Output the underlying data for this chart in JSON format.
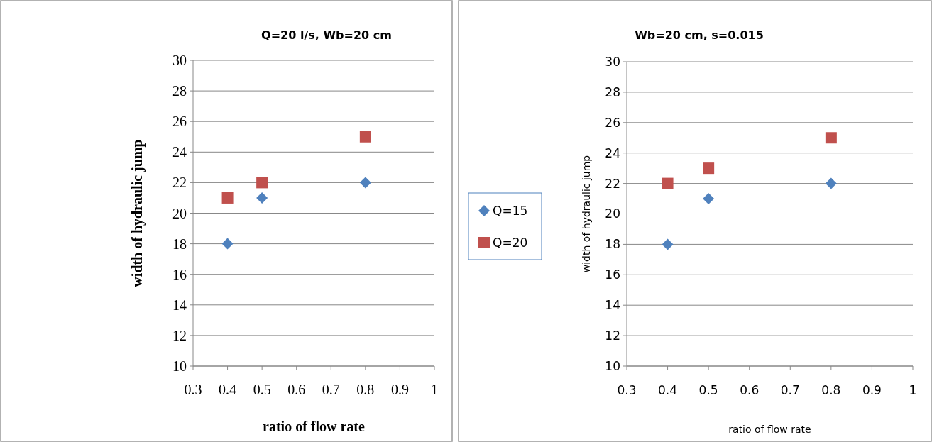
{
  "chart_data": [
    {
      "type": "scatter",
      "title": "Q=20 l/s, Wb=20 cm",
      "xlabel": "ratio of  flow rate",
      "ylabel": "width of  hydraulic  jump",
      "xlim": [
        0.3,
        1
      ],
      "xticks": [
        0.3,
        0.4,
        0.5,
        0.6,
        0.7,
        0.8,
        0.9,
        1
      ],
      "ylim": [
        10,
        30
      ],
      "yticks": [
        10,
        12,
        14,
        16,
        18,
        20,
        22,
        24,
        26,
        28,
        30
      ],
      "grid": "y",
      "legend": false,
      "series": [
        {
          "color": "#4f81bd",
          "marker": "diamond",
          "x": [
            0.4,
            0.5,
            0.8
          ],
          "values": [
            18,
            21,
            22
          ]
        },
        {
          "color": "#c0504d",
          "marker": "square",
          "x": [
            0.4,
            0.5,
            0.8
          ],
          "values": [
            21,
            22,
            25
          ]
        }
      ]
    },
    {
      "type": "scatter",
      "title": "Wb=20 cm, s=0.015",
      "xlabel": "ratio of  flow rate",
      "ylabel": "width of  hydraulic  jump",
      "xlim": [
        0.3,
        1
      ],
      "xticks": [
        0.3,
        0.4,
        0.5,
        0.6,
        0.7,
        0.8,
        0.9,
        1
      ],
      "ylim": [
        10,
        30
      ],
      "yticks": [
        10,
        12,
        14,
        16,
        18,
        20,
        22,
        24,
        26,
        28,
        30
      ],
      "grid": "y",
      "legend": "left",
      "series": [
        {
          "name": "Q=15",
          "color": "#4f81bd",
          "marker": "diamond",
          "x": [
            0.4,
            0.5,
            0.8
          ],
          "values": [
            18,
            21,
            22
          ]
        },
        {
          "name": "Q=20",
          "color": "#c0504d",
          "marker": "square",
          "x": [
            0.4,
            0.5,
            0.8
          ],
          "values": [
            22,
            23,
            25
          ]
        }
      ]
    }
  ]
}
